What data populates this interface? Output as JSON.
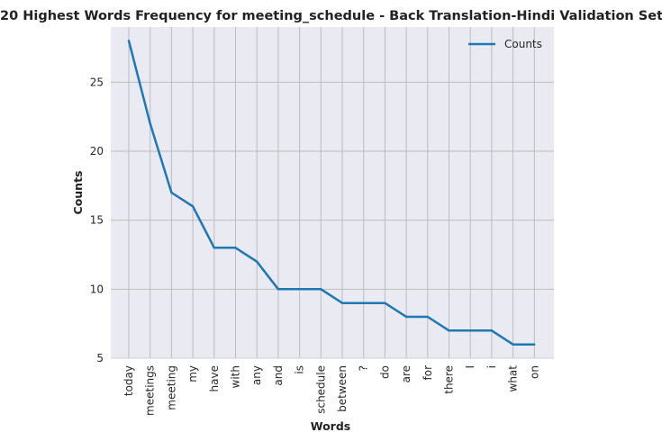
{
  "chart_data": {
    "type": "line",
    "title": "20 Highest Words Frequency for meeting_schedule - Back Translation-Hindi Validation Set",
    "xlabel": "Words",
    "ylabel": "Counts",
    "categories": [
      "today",
      "meetings",
      "meeting",
      "my",
      "have",
      "with",
      "any",
      "and",
      "is",
      "schedule",
      "between",
      "?",
      "do",
      "are",
      "for",
      "there",
      "I",
      "i",
      "what",
      "on"
    ],
    "series": [
      {
        "name": "Counts",
        "values": [
          28,
          22,
          17,
          16,
          13,
          13,
          12,
          10,
          10,
          10,
          9,
          9,
          9,
          8,
          8,
          7,
          7,
          7,
          6,
          6
        ],
        "color": "#1f77b4"
      }
    ],
    "y_ticks": [
      "5",
      "10",
      "15",
      "20",
      "25"
    ],
    "ylim": [
      5,
      29
    ],
    "grid": true,
    "legend_position": "top-right",
    "background": "#eaeaf2"
  }
}
